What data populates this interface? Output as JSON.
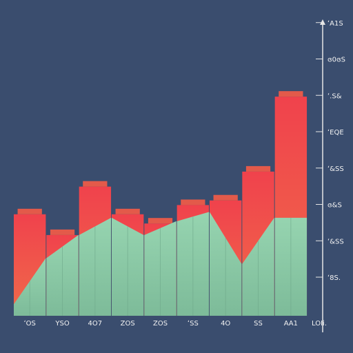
{
  "chart_data": {
    "type": "bar",
    "title": "",
    "xlabel": "",
    "ylabel": "",
    "categories": [
      "ʻOS",
      "YSO",
      "4O7",
      "ZOS",
      "ZOS",
      "ʻSS",
      "4O",
      "SS",
      "AA1"
    ],
    "values_red": [
      88,
      70,
      112,
      88,
      80,
      96,
      100,
      125,
      190
    ],
    "values_green": [
      10,
      50,
      70,
      85,
      70,
      82,
      90,
      45,
      85
    ],
    "ylim": [
      0,
      220
    ],
    "grid": false,
    "y_ticks": [
      "ʻ8S.",
      "ʻ&SS",
      "ɞ&S",
      "ʻ&SS",
      "ʻEQE",
      "ʻ.S&",
      "ɞ0ɞS",
      "ʻA1S"
    ],
    "x_corner_label": "LOIi.",
    "colors": {
      "background": "#3a4d6e",
      "red_top": "#f0424c",
      "red_bottom": "#f06048",
      "green": "#8ccaa6",
      "green_dark": "#72b08e",
      "axis": "#e6e6e6"
    }
  }
}
